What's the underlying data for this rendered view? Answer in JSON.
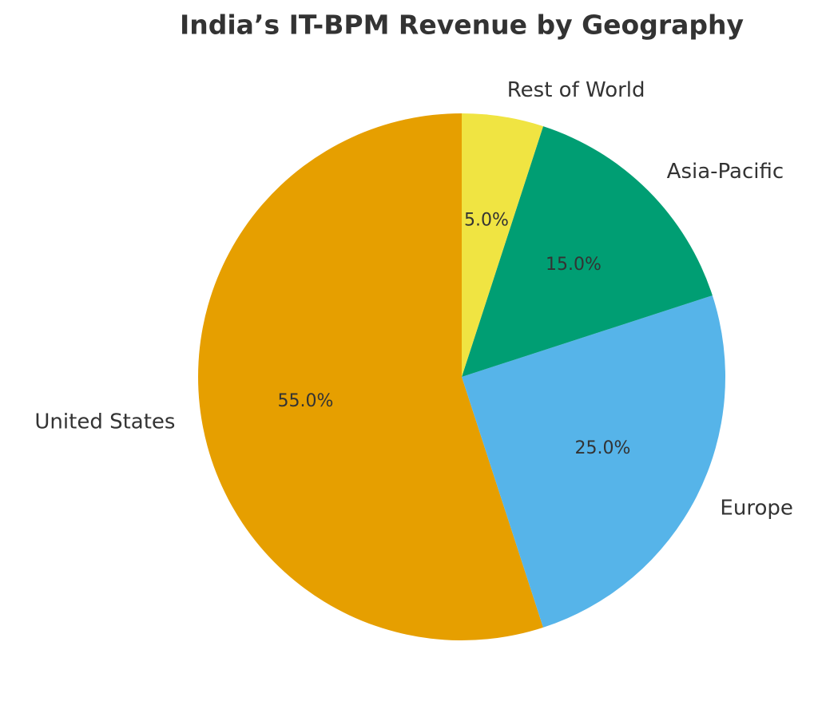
{
  "chart_data": {
    "type": "pie",
    "title": "India’s IT-BPM Revenue by Geography",
    "categories": [
      "United States",
      "Europe",
      "Asia-Pacific",
      "Rest of World"
    ],
    "values": [
      55,
      25,
      15,
      5
    ],
    "value_labels": [
      "55.0%",
      "25.0%",
      "15.0%",
      "5.0%"
    ],
    "colors": [
      "#E69F00",
      "#56B4E9",
      "#009E73",
      "#F0E442"
    ]
  }
}
